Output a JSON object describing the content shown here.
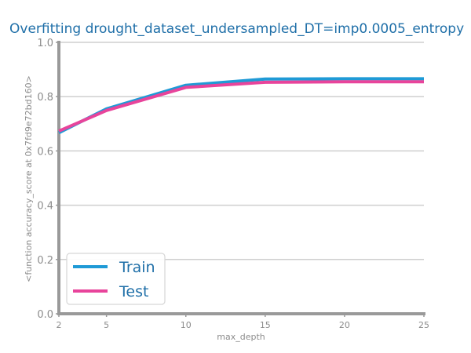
{
  "chart_data": {
    "type": "line",
    "title": "Overfitting drought_dataset_undersampled_DT=imp0.0005_entropy",
    "xlabel": "max_depth",
    "ylabel": "<function accuracy_score at 0x7fd9e72bd160>",
    "x": [
      2,
      5,
      10,
      15,
      20,
      25
    ],
    "xticks": [
      "2",
      "5",
      "10",
      "15",
      "20",
      "25"
    ],
    "xlim": [
      2,
      25
    ],
    "ylim": [
      0,
      1
    ],
    "yticks": [
      "0.0",
      "0.2",
      "0.4",
      "0.6",
      "0.8",
      "1.0"
    ],
    "grid": "horizontal",
    "legend_position": "lower-left",
    "series": [
      {
        "name": "Train",
        "color": "#1f9ad6",
        "values": [
          0.667,
          0.755,
          0.842,
          0.865,
          0.866,
          0.866
        ]
      },
      {
        "name": "Test",
        "color": "#e8449b",
        "values": [
          0.673,
          0.749,
          0.834,
          0.853,
          0.855,
          0.855
        ]
      }
    ]
  }
}
